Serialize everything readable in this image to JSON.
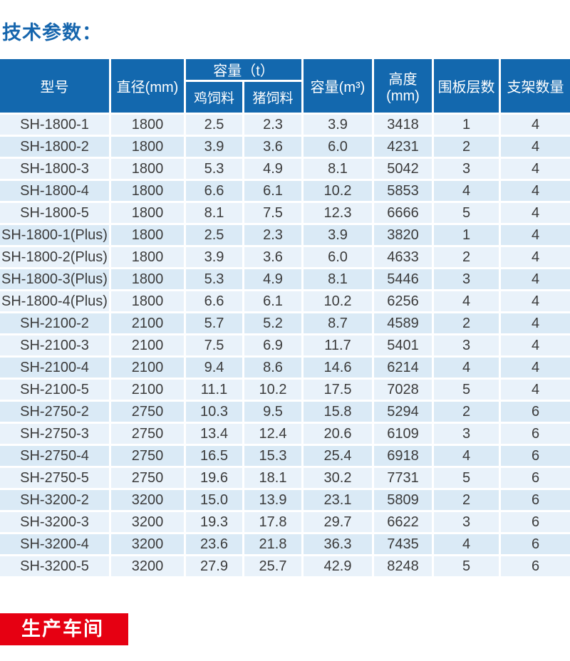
{
  "page": {
    "title": "技术参数：",
    "accent_blue": "#1368ae",
    "title_blue": "#1565ad",
    "row_color_odd": "#e9f2fa",
    "row_color_even": "#daeaf6",
    "text_color": "#3b3b3b"
  },
  "banner": {
    "label": "生产车间",
    "bg": "#e60012"
  },
  "table": {
    "header": {
      "model": "型号",
      "diameter": "直径(mm)",
      "capacity_t": "容量（t）",
      "chicken": "鸡饲料",
      "pig": "猪饲料",
      "capacity_m3": "容量(m³)",
      "height": "高度(mm)",
      "layers": "围板层数",
      "supports": "支架数量"
    },
    "column_keys": [
      "model",
      "diameter",
      "capacity-chicken",
      "capacity-pig",
      "capacity-m3",
      "height",
      "layers",
      "supports"
    ],
    "rows": [
      [
        "SH-1800-1",
        "1800",
        "2.5",
        "2.3",
        "3.9",
        "3418",
        "1",
        "4"
      ],
      [
        "SH-1800-2",
        "1800",
        "3.9",
        "3.6",
        "6.0",
        "4231",
        "2",
        "4"
      ],
      [
        "SH-1800-3",
        "1800",
        "5.3",
        "4.9",
        "8.1",
        "5042",
        "3",
        "4"
      ],
      [
        "SH-1800-4",
        "1800",
        "6.6",
        "6.1",
        "10.2",
        "5853",
        "4",
        "4"
      ],
      [
        "SH-1800-5",
        "1800",
        "8.1",
        "7.5",
        "12.3",
        "6666",
        "5",
        "4"
      ],
      [
        "SH-1800-1(Plus)",
        "1800",
        "2.5",
        "2.3",
        "3.9",
        "3820",
        "1",
        "4"
      ],
      [
        "SH-1800-2(Plus)",
        "1800",
        "3.9",
        "3.6",
        "6.0",
        "4633",
        "2",
        "4"
      ],
      [
        "SH-1800-3(Plus)",
        "1800",
        "5.3",
        "4.9",
        "8.1",
        "5446",
        "3",
        "4"
      ],
      [
        "SH-1800-4(Plus)",
        "1800",
        "6.6",
        "6.1",
        "10.2",
        "6256",
        "4",
        "4"
      ],
      [
        "SH-2100-2",
        "2100",
        "5.7",
        "5.2",
        "8.7",
        "4589",
        "2",
        "4"
      ],
      [
        "SH-2100-3",
        "2100",
        "7.5",
        "6.9",
        "11.7",
        "5401",
        "3",
        "4"
      ],
      [
        "SH-2100-4",
        "2100",
        "9.4",
        "8.6",
        "14.6",
        "6214",
        "4",
        "4"
      ],
      [
        "SH-2100-5",
        "2100",
        "11.1",
        "10.2",
        "17.5",
        "7028",
        "5",
        "4"
      ],
      [
        "SH-2750-2",
        "2750",
        "10.3",
        "9.5",
        "15.8",
        "5294",
        "2",
        "6"
      ],
      [
        "SH-2750-3",
        "2750",
        "13.4",
        "12.4",
        "20.6",
        "6109",
        "3",
        "6"
      ],
      [
        "SH-2750-4",
        "2750",
        "16.5",
        "15.3",
        "25.4",
        "6918",
        "4",
        "6"
      ],
      [
        "SH-2750-5",
        "2750",
        "19.6",
        "18.1",
        "30.2",
        "7731",
        "5",
        "6"
      ],
      [
        "SH-3200-2",
        "3200",
        "15.0",
        "13.9",
        "23.1",
        "5809",
        "2",
        "6"
      ],
      [
        "SH-3200-3",
        "3200",
        "19.3",
        "17.8",
        "29.7",
        "6622",
        "3",
        "6"
      ],
      [
        "SH-3200-4",
        "3200",
        "23.6",
        "21.8",
        "36.3",
        "7435",
        "4",
        "6"
      ],
      [
        "SH-3200-5",
        "3200",
        "27.9",
        "25.7",
        "42.9",
        "8248",
        "5",
        "6"
      ]
    ]
  }
}
